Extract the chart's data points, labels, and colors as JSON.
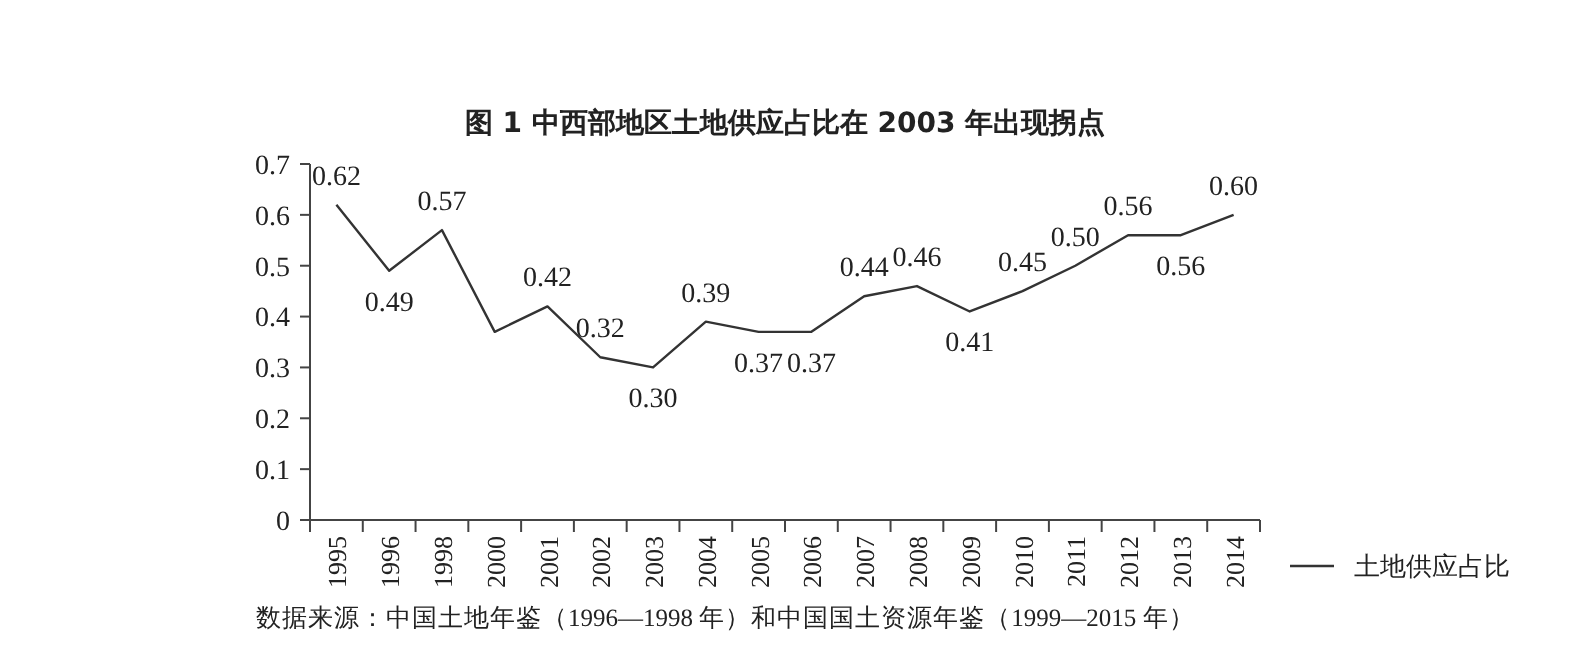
{
  "chart_data": {
    "type": "line",
    "title": "图 1  中西部地区土地供应占比在 2003 年出现拐点",
    "categories": [
      "1995",
      "1996",
      "1998",
      "2000",
      "2001",
      "2002",
      "2003",
      "2004",
      "2005",
      "2006",
      "2007",
      "2008",
      "2009",
      "2010",
      "2011",
      "2012",
      "2013",
      "2014"
    ],
    "series": [
      {
        "name": "土地供应占比",
        "color": "#333333",
        "values": [
          0.62,
          0.49,
          0.57,
          0.37,
          0.42,
          0.32,
          0.3,
          0.39,
          0.37,
          0.37,
          0.44,
          0.46,
          0.41,
          0.45,
          0.5,
          0.56,
          0.56,
          0.6
        ],
        "value_labels": [
          "0.62",
          "0.49",
          "0.57",
          null,
          "0.42",
          "0.32",
          "0.30",
          "0.39",
          "0.37",
          "0.37",
          "0.44",
          "0.46",
          "0.41",
          "0.45",
          "0.50",
          "0.56",
          "0.56",
          "0.60"
        ]
      }
    ],
    "ylim": [
      0,
      0.7
    ],
    "yticks": [
      0,
      0.1,
      0.2,
      0.3,
      0.4,
      0.5,
      0.6,
      0.7
    ],
    "grid": false,
    "legend": "right",
    "marker": "none",
    "line_style": "solid",
    "annotations": [
      "数据来源：中国土地年鉴（1996—1998 年）和中国国土资源年鉴（1999—2015 年）"
    ]
  }
}
